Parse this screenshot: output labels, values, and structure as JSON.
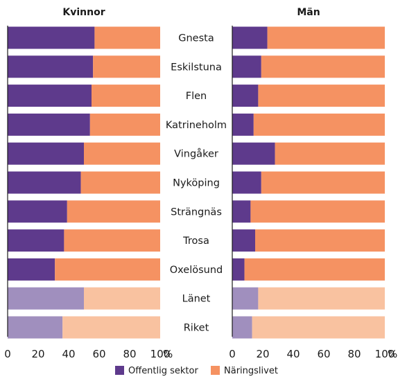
{
  "chart_data": {
    "type": "bar",
    "stacked": "percent",
    "orientation": "horizontal",
    "unit": "%",
    "categories": [
      "Gnesta",
      "Eskilstuna",
      "Flen",
      "Katrineholm",
      "Vingåker",
      "Nyköping",
      "Strängnäs",
      "Trosa",
      "Oxelösund",
      "Länet",
      "Riket"
    ],
    "highlight_categories": [
      "Länet",
      "Riket"
    ],
    "xlim": [
      0,
      100
    ],
    "xticks": [
      "0",
      "20",
      "40",
      "60",
      "80",
      "100"
    ],
    "tick_unit_label": "%",
    "legend_position": "bottom",
    "series_names": [
      "Offentlig sektor",
      "Näringslivet"
    ],
    "colors": {
      "offentlig": "#5e3a8c",
      "offentlig_light": "#a08fbe",
      "naringsliv": "#f59262",
      "naringsliv_light": "#f9c2a0"
    },
    "panels": [
      {
        "title": "Kvinnor",
        "series": [
          {
            "name": "Offentlig sektor",
            "values": [
              57,
              56,
              55,
              54,
              50,
              48,
              39,
              37,
              31,
              50,
              36
            ]
          },
          {
            "name": "Näringslivet",
            "values": [
              43,
              44,
              45,
              46,
              50,
              52,
              61,
              63,
              69,
              50,
              64
            ]
          }
        ]
      },
      {
        "title": "Män",
        "series": [
          {
            "name": "Offentlig sektor",
            "values": [
              23,
              19,
              17,
              14,
              28,
              19,
              12,
              15,
              8,
              17,
              13
            ]
          },
          {
            "name": "Näringslivet",
            "values": [
              77,
              81,
              83,
              86,
              72,
              81,
              88,
              85,
              92,
              83,
              87
            ]
          }
        ]
      }
    ]
  }
}
